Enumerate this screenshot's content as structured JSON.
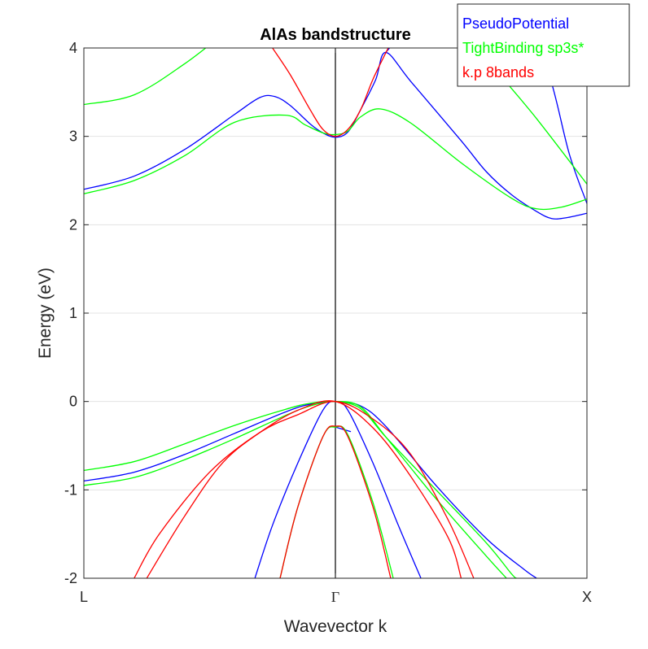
{
  "chart_data": {
    "type": "line",
    "title": "AlAs bandstructure",
    "xlabel": "Wavevector k",
    "ylabel": "Energy (eV)",
    "x_range": [
      -1,
      1
    ],
    "ylim": [
      -2,
      4
    ],
    "x_ticks": [
      {
        "value": -1,
        "label": "L"
      },
      {
        "value": 0,
        "label": "Γ"
      },
      {
        "value": 1,
        "label": "X"
      }
    ],
    "y_ticks": [
      {
        "value": -2,
        "label": "-2"
      },
      {
        "value": -1,
        "label": "-1"
      },
      {
        "value": 0,
        "label": "0"
      },
      {
        "value": 1,
        "label": "1"
      },
      {
        "value": 2,
        "label": "2"
      },
      {
        "value": 3,
        "label": "3"
      },
      {
        "value": 4,
        "label": "4"
      }
    ],
    "grid": "horizontal",
    "vertical_line_at": 0,
    "legend_position": "top-right",
    "series": [
      {
        "name": "PseudoPotential",
        "color": "#0000ff",
        "bands": [
          [
            [
              -1,
              2.4
            ],
            [
              -0.8,
              2.55
            ],
            [
              -0.6,
              2.85
            ],
            [
              -0.4,
              3.25
            ],
            [
              -0.3,
              3.44
            ],
            [
              -0.24,
              3.45
            ],
            [
              -0.18,
              3.35
            ],
            [
              -0.1,
              3.14
            ],
            [
              -0.05,
              3.04
            ],
            [
              0,
              2.99
            ],
            [
              0.05,
              3.05
            ],
            [
              0.1,
              3.3
            ],
            [
              0.16,
              3.64
            ],
            [
              0.2,
              3.95
            ],
            [
              0.3,
              3.62
            ],
            [
              0.5,
              2.95
            ],
            [
              0.6,
              2.6
            ],
            [
              0.7,
              2.34
            ],
            [
              0.8,
              2.15
            ],
            [
              0.86,
              2.07
            ],
            [
              0.92,
              2.08
            ],
            [
              1,
              2.13
            ]
          ],
          [
            [
              0.2,
              3.95
            ],
            [
              0.4,
              4.6
            ]
          ],
          [
            [
              0.75,
              4.6
            ],
            [
              0.86,
              3.6
            ],
            [
              0.93,
              2.8
            ],
            [
              1,
              2.24
            ]
          ],
          [
            [
              -1,
              -0.9
            ],
            [
              -0.8,
              -0.8
            ],
            [
              -0.6,
              -0.6
            ],
            [
              -0.4,
              -0.36
            ],
            [
              -0.2,
              -0.12
            ],
            [
              -0.1,
              -0.03
            ],
            [
              0,
              0.0
            ],
            [
              0.1,
              -0.05
            ],
            [
              0.2,
              -0.28
            ],
            [
              0.4,
              -0.95
            ],
            [
              0.6,
              -1.55
            ],
            [
              0.75,
              -1.9
            ],
            [
              0.8,
              -2.0
            ]
          ],
          [
            [
              -0.32,
              -2.0
            ],
            [
              -0.25,
              -1.4
            ],
            [
              -0.15,
              -0.7
            ],
            [
              -0.05,
              -0.1
            ],
            [
              0,
              0.0
            ],
            [
              0.05,
              -0.1
            ],
            [
              0.15,
              -0.7
            ],
            [
              0.25,
              -1.4
            ],
            [
              0.34,
              -2.0
            ]
          ],
          [
            [
              0,
              -0.29
            ],
            [
              0.06,
              -0.34
            ]
          ]
        ]
      },
      {
        "name": "TightBinding sp3s*",
        "color": "#00ff00",
        "bands": [
          [
            [
              -1,
              3.36
            ],
            [
              -0.8,
              3.47
            ],
            [
              -0.6,
              3.82
            ],
            [
              -0.45,
              4.15
            ]
          ],
          [
            [
              0.45,
              4.6
            ],
            [
              0.6,
              3.9
            ],
            [
              0.8,
              3.2
            ],
            [
              1,
              2.46
            ]
          ],
          [
            [
              -1,
              2.35
            ],
            [
              -0.8,
              2.5
            ],
            [
              -0.6,
              2.78
            ],
            [
              -0.4,
              3.16
            ],
            [
              -0.2,
              3.24
            ],
            [
              -0.12,
              3.13
            ],
            [
              -0.05,
              3.04
            ],
            [
              0,
              3.02
            ],
            [
              0.05,
              3.06
            ],
            [
              0.1,
              3.22
            ],
            [
              0.18,
              3.31
            ],
            [
              0.3,
              3.15
            ],
            [
              0.5,
              2.7
            ],
            [
              0.7,
              2.3
            ],
            [
              0.8,
              2.18
            ],
            [
              0.9,
              2.2
            ],
            [
              1,
              2.29
            ]
          ],
          [
            [
              -0.03,
              4.05
            ],
            [
              0,
              4.02
            ],
            [
              0.03,
              4.05
            ]
          ],
          [
            [
              -1,
              -0.78
            ],
            [
              -0.8,
              -0.68
            ],
            [
              -0.6,
              -0.48
            ],
            [
              -0.4,
              -0.27
            ],
            [
              -0.2,
              -0.09
            ],
            [
              -0.1,
              -0.02
            ],
            [
              0,
              0.0
            ],
            [
              0.1,
              -0.08
            ],
            [
              0.2,
              -0.4
            ],
            [
              0.4,
              -1.0
            ],
            [
              0.6,
              -1.6
            ],
            [
              0.7,
              -1.95
            ],
            [
              0.72,
              -2.0
            ]
          ],
          [
            [
              -1,
              -0.95
            ],
            [
              -0.8,
              -0.86
            ],
            [
              -0.6,
              -0.66
            ],
            [
              -0.4,
              -0.42
            ],
            [
              -0.2,
              -0.16
            ],
            [
              -0.1,
              -0.05
            ],
            [
              0,
              0.0
            ],
            [
              0.1,
              -0.06
            ],
            [
              0.2,
              -0.4
            ],
            [
              0.4,
              -1.1
            ],
            [
              0.6,
              -1.75
            ],
            [
              0.68,
              -2.0
            ]
          ],
          [
            [
              -0.22,
              -2.0
            ],
            [
              -0.15,
              -1.2
            ],
            [
              -0.05,
              -0.4
            ],
            [
              0,
              -0.29
            ],
            [
              0.05,
              -0.38
            ],
            [
              0.15,
              -1.15
            ],
            [
              0.23,
              -2.0
            ]
          ]
        ]
      },
      {
        "name": "k.p 8bands",
        "color": "#ff0000",
        "bands": [
          [
            [
              -0.25,
              4.0
            ],
            [
              -0.18,
              3.7
            ],
            [
              -0.1,
              3.3
            ],
            [
              -0.05,
              3.08
            ],
            [
              0,
              3.0
            ],
            [
              0.05,
              3.08
            ],
            [
              0.1,
              3.3
            ],
            [
              0.15,
              3.65
            ],
            [
              0.21,
              4.0
            ]
          ],
          [
            [
              -0.8,
              -2.0
            ],
            [
              -0.7,
              -1.5
            ],
            [
              -0.5,
              -0.8
            ],
            [
              -0.3,
              -0.35
            ],
            [
              -0.15,
              -0.15
            ],
            [
              0,
              0.0
            ],
            [
              0.15,
              -0.2
            ],
            [
              0.3,
              -0.6
            ],
            [
              0.45,
              -1.35
            ],
            [
              0.55,
              -2.0
            ]
          ],
          [
            [
              -0.75,
              -2.0
            ],
            [
              -0.6,
              -1.3
            ],
            [
              -0.45,
              -0.7
            ],
            [
              -0.3,
              -0.35
            ],
            [
              -0.15,
              -0.1
            ],
            [
              0,
              0.0
            ],
            [
              0.15,
              -0.3
            ],
            [
              0.3,
              -0.85
            ],
            [
              0.45,
              -1.55
            ],
            [
              0.5,
              -2.0
            ]
          ],
          [
            [
              -0.22,
              -2.0
            ],
            [
              -0.15,
              -1.2
            ],
            [
              -0.05,
              -0.4
            ],
            [
              0,
              -0.28
            ],
            [
              0.05,
              -0.4
            ],
            [
              0.15,
              -1.2
            ],
            [
              0.22,
              -2.0
            ]
          ]
        ]
      }
    ]
  }
}
